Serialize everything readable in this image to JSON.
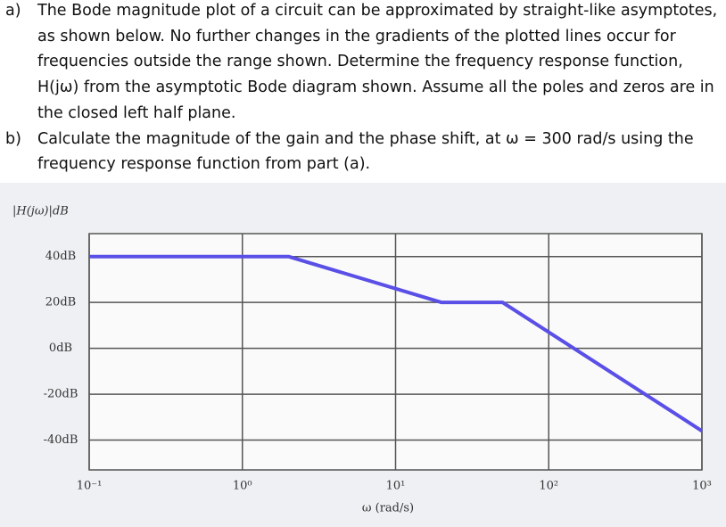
{
  "questions": [
    {
      "label": "a)",
      "lines": [
        "The Bode magnitude plot of a circuit can be approximated by straight-like asymptotes,",
        "as shown below. No further changes in the gradients of the plotted lines occur for",
        "frequencies outside the range shown. Determine the frequency response function,",
        "H(jω) from the asymptotic Bode diagram shown. Assume all the poles and zeros are in",
        "the closed left half plane."
      ]
    },
    {
      "label": "b)",
      "lines": [
        "Calculate the magnitude of the gain and the phase shift, at ω = 300 rad/s using the",
        "frequency response function from part (a)."
      ]
    }
  ],
  "chart_data": {
    "type": "line",
    "y_label": "|H(jω)|dB",
    "x_label": "ω (rad/s)",
    "xscale": "log",
    "grid": true,
    "color": "#5a4fe6",
    "x": [
      0.1,
      2,
      20,
      50,
      1000
    ],
    "values": [
      40,
      40,
      20,
      20,
      -36
    ],
    "xlim": [
      0.1,
      1000
    ],
    "ylim": [
      -53,
      50
    ],
    "xticks": [
      {
        "value": 0.1,
        "label": "10⁻¹"
      },
      {
        "value": 1,
        "label": "10⁰"
      },
      {
        "value": 10,
        "label": "10¹"
      },
      {
        "value": 100,
        "label": "10²"
      },
      {
        "value": 1000,
        "label": "10³"
      }
    ],
    "yticks": [
      {
        "value": 40,
        "label": "40dB"
      },
      {
        "value": 20,
        "label": "20dB"
      },
      {
        "value": 0,
        "label": "0dB"
      },
      {
        "value": -20,
        "label": "-20dB"
      },
      {
        "value": -40,
        "label": "-40dB"
      }
    ]
  }
}
